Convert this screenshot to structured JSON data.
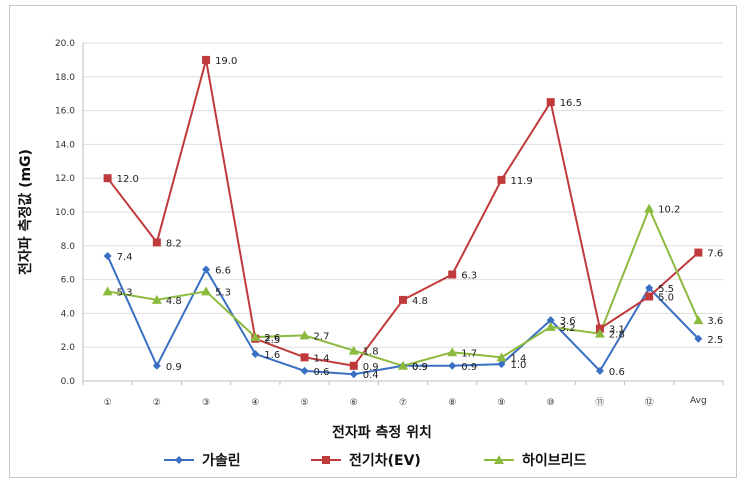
{
  "chart_data": {
    "type": "line",
    "title": "",
    "xlabel": "전자파 측정 위치",
    "ylabel": "전자파 측정값 (mG)",
    "ylim": [
      0,
      20
    ],
    "yticks": [
      "0.0",
      "2.0",
      "4.0",
      "6.0",
      "8.0",
      "10.0",
      "12.0",
      "14.0",
      "16.0",
      "18.0",
      "20.0"
    ],
    "categories": [
      "①",
      "②",
      "③",
      "④",
      "⑤",
      "⑥",
      "⑦",
      "⑧",
      "⑨",
      "⑩",
      "⑪",
      "⑫",
      "Avg"
    ],
    "grid": true,
    "legend_position": "bottom",
    "series": [
      {
        "name": "가솔린",
        "color": "#3a6fc4",
        "marker": "diamond",
        "values": [
          7.4,
          0.9,
          6.6,
          1.6,
          0.6,
          0.4,
          0.9,
          0.9,
          1.0,
          3.6,
          0.6,
          5.5,
          2.5
        ],
        "labels": [
          "7.4",
          "0.9",
          "6.6",
          "1.6",
          "0.6",
          "0.4",
          "0.9",
          "0.9",
          "1.0",
          "3.6",
          "0.6",
          "5.5",
          "2.5"
        ]
      },
      {
        "name": "전기차(EV)",
        "color": "#c0393b",
        "marker": "square",
        "values": [
          12.0,
          8.2,
          19.0,
          2.5,
          1.4,
          0.9,
          4.8,
          6.3,
          11.9,
          16.5,
          3.1,
          5.0,
          7.6
        ],
        "labels": [
          "12.0",
          "8.2",
          "19.0",
          "2.5",
          "1.4",
          "0.9",
          "4.8",
          "6.3",
          "11.9",
          "16.5",
          "3.1",
          "5.0",
          "7.6"
        ]
      },
      {
        "name": "하이브리드",
        "color": "#8cba3f",
        "marker": "triangle",
        "values": [
          5.3,
          4.8,
          5.3,
          2.6,
          2.7,
          1.8,
          0.9,
          1.7,
          1.4,
          3.2,
          2.8,
          10.2,
          3.6
        ],
        "labels": [
          "5.3",
          "4.8",
          "5.3",
          "2.6",
          "2.7",
          "1.8",
          "0.9",
          "1.7",
          "1.4",
          "3.2",
          "2.8",
          "10.2",
          "3.6"
        ]
      }
    ]
  }
}
